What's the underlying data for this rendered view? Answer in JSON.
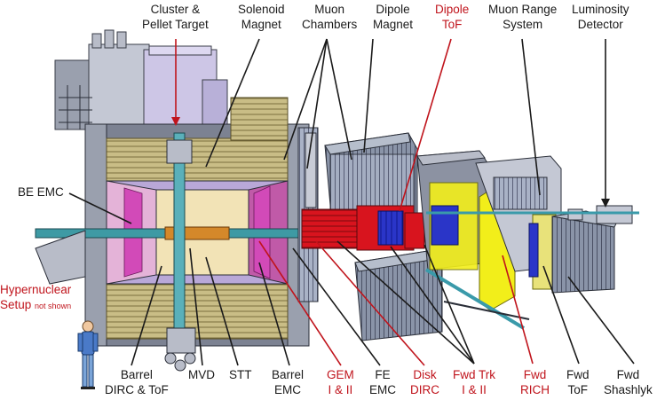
{
  "labels": {
    "cluster": {
      "l1": "Cluster &",
      "l2": "Pellet Target"
    },
    "solenoid": {
      "l1": "Solenoid",
      "l2": "Magnet"
    },
    "muon_ch": {
      "l1": "Muon",
      "l2": "Chambers"
    },
    "dipole_mag": {
      "l1": "Dipole",
      "l2": "Magnet"
    },
    "dipole_tof": {
      "l1": "Dipole",
      "l2": "ToF"
    },
    "muon_range": {
      "l1": "Muon Range",
      "l2": "System"
    },
    "lumi": {
      "l1": "Luminosity",
      "l2": "Detector"
    },
    "be_emc": {
      "l1": "BE EMC"
    },
    "hyper": {
      "l1": "Hypernuclear",
      "l2": "Setup",
      "l2b": "not shown"
    },
    "barrel_dirc": {
      "l1": "Barrel",
      "l2": "DIRC & ToF"
    },
    "mvd": {
      "l1": "MVD"
    },
    "stt": {
      "l1": "STT"
    },
    "barrel_emc": {
      "l1": "Barrel",
      "l2": "EMC"
    },
    "gem": {
      "l1": "GEM",
      "l2": "I & II"
    },
    "fe_emc": {
      "l1": "FE",
      "l2": "EMC"
    },
    "disk_dirc": {
      "l1": "Disk",
      "l2": "DIRC"
    },
    "fwd_trk": {
      "l1": "Fwd Trk",
      "l2": "I & II"
    },
    "fwd_rich": {
      "l1": "Fwd",
      "l2": "RICH"
    },
    "fwd_tof": {
      "l1": "Fwd",
      "l2": "ToF"
    },
    "fwd_shash": {
      "l1": "Fwd",
      "l2": "Shashlyk"
    }
  },
  "colors": {
    "label_black": "#1a1a1a",
    "label_red": "#c0141c",
    "dark_grey": "#5a5e66",
    "light_grey": "#c8ccd6",
    "lavender": "#c9c2e2",
    "gold": "#cfc38a",
    "blue": "#2a35c8",
    "red": "#d8141e",
    "yellow": "#f2ee1a",
    "magenta": "#d24ab8",
    "teal": "#4a9aa8",
    "orange": "#d4882a"
  }
}
